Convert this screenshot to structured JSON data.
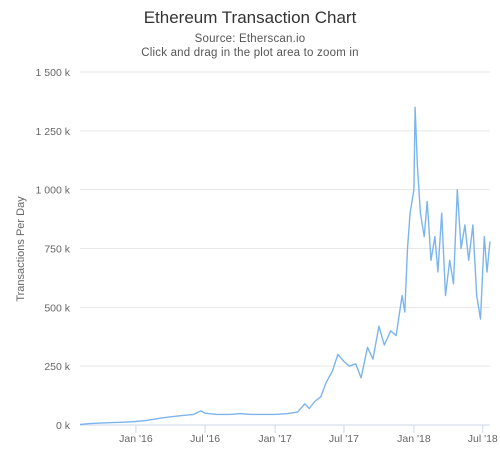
{
  "chart_data": {
    "type": "line",
    "title": "Ethereum Transaction Chart",
    "subtitle_lines": [
      "Source: Etherscan.io",
      "Click and drag in the plot area to zoom in"
    ],
    "xlabel": "",
    "ylabel": "Transactions Per Day",
    "x_tick_labels": [
      "Jan '16",
      "Jul '16",
      "Jan '17",
      "Jul '17",
      "Jan '18",
      "Jul '18"
    ],
    "x_ticks": [
      "2016-01-01",
      "2016-07-01",
      "2017-01-01",
      "2017-07-01",
      "2018-01-01",
      "2018-07-01"
    ],
    "xlim": [
      "2015-08-07",
      "2018-07-20"
    ],
    "y_ticks": [
      0,
      250000,
      500000,
      750000,
      1000000,
      1250000,
      1500000
    ],
    "y_tick_labels": [
      "0 k",
      "250 k",
      "500 k",
      "750 k",
      "1 000 k",
      "1 250 k",
      "1 500 k"
    ],
    "ylim": [
      0,
      1500000
    ],
    "grid": true,
    "legend": "none",
    "line_color": "#7cb5ec",
    "series": [
      {
        "x": [
          "2015-08-07",
          "2015-09-01",
          "2015-10-01",
          "2015-11-01",
          "2015-12-01",
          "2016-01-01",
          "2016-02-01",
          "2016-03-01",
          "2016-04-01",
          "2016-05-01",
          "2016-06-01",
          "2016-06-20",
          "2016-07-01",
          "2016-08-01",
          "2016-09-01",
          "2016-10-01",
          "2016-11-01",
          "2016-12-01",
          "2017-01-01",
          "2017-02-01",
          "2017-03-01",
          "2017-03-20",
          "2017-04-01",
          "2017-04-15",
          "2017-05-01",
          "2017-05-15",
          "2017-06-01",
          "2017-06-15",
          "2017-07-01",
          "2017-07-15",
          "2017-08-01",
          "2017-08-15",
          "2017-09-01",
          "2017-09-15",
          "2017-10-01",
          "2017-10-15",
          "2017-11-01",
          "2017-11-15",
          "2017-12-01",
          "2017-12-08",
          "2017-12-15",
          "2017-12-22",
          "2018-01-01",
          "2018-01-04",
          "2018-01-10",
          "2018-01-18",
          "2018-01-28",
          "2018-02-05",
          "2018-02-15",
          "2018-02-25",
          "2018-03-05",
          "2018-03-15",
          "2018-03-25",
          "2018-04-05",
          "2018-04-15",
          "2018-04-25",
          "2018-05-05",
          "2018-05-15",
          "2018-05-25",
          "2018-06-05",
          "2018-06-15",
          "2018-06-25",
          "2018-07-05",
          "2018-07-12",
          "2018-07-20"
        ],
        "y": [
          2000,
          6000,
          8000,
          10000,
          12000,
          15000,
          20000,
          28000,
          35000,
          40000,
          45000,
          60000,
          50000,
          45000,
          45000,
          48000,
          45000,
          45000,
          45000,
          48000,
          55000,
          90000,
          70000,
          100000,
          120000,
          180000,
          230000,
          300000,
          270000,
          250000,
          260000,
          200000,
          330000,
          280000,
          420000,
          340000,
          400000,
          380000,
          550000,
          480000,
          750000,
          900000,
          1000000,
          1350000,
          1100000,
          900000,
          800000,
          950000,
          700000,
          800000,
          650000,
          900000,
          550000,
          700000,
          600000,
          1000000,
          750000,
          850000,
          700000,
          850000,
          550000,
          450000,
          800000,
          650000,
          780000
        ]
      }
    ]
  }
}
